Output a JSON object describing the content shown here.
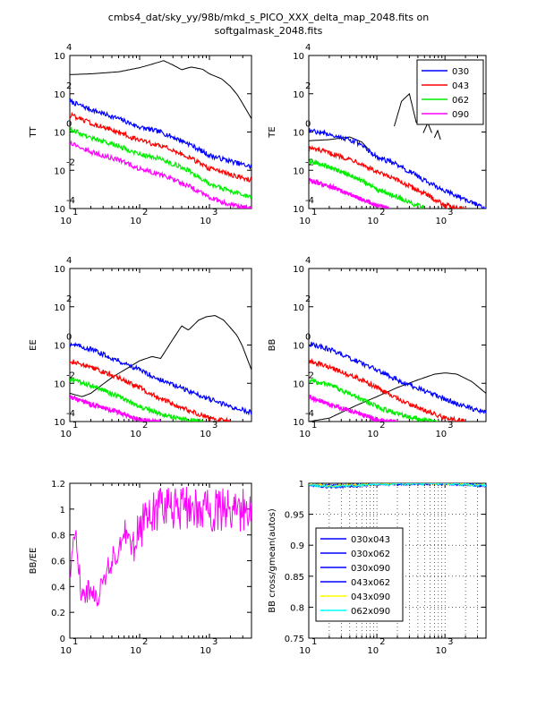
{
  "figure": {
    "title_line1": "cmbs4_dat/sky_yy/98b/mkd_s_PICO_XXX_delta_map_2048.fits on",
    "title_line2": "softgalmask_2048.fits"
  },
  "colors": {
    "030": "#0000ff",
    "043": "#ff0000",
    "062": "#00ee00",
    "090": "#ff00ff",
    "theory": "#000000",
    "043x090": "#ffff00",
    "062x090": "#00ffff"
  },
  "chart_data": [
    {
      "id": "tt",
      "type": "line",
      "ylabel": "TT",
      "xscale": "log",
      "yscale": "log",
      "xlim": [
        10,
        4000
      ],
      "ylim": [
        0.0001,
        10000
      ],
      "xticks": [
        {
          "base": "10",
          "exp": "1",
          "value": 10
        },
        {
          "base": "10",
          "exp": "2",
          "value": 100
        },
        {
          "base": "10",
          "exp": "3",
          "value": 1000
        }
      ],
      "yticks": [
        {
          "base": "10",
          "exp": "-4",
          "value": 0.0001
        },
        {
          "base": "10",
          "exp": "-2",
          "value": 0.01
        },
        {
          "base": "10",
          "exp": "0",
          "value": 1
        },
        {
          "base": "10",
          "exp": "2",
          "value": 100
        },
        {
          "base": "10",
          "exp": "4",
          "value": 10000
        }
      ],
      "theory": {
        "x": [
          10,
          20,
          50,
          100,
          150,
          200,
          220,
          300,
          400,
          550,
          800,
          1000,
          1500,
          2000,
          2500,
          3000,
          4000
        ],
        "y": [
          1000,
          1100,
          1400,
          2300,
          3500,
          4800,
          5400,
          3200,
          1800,
          2500,
          1900,
          1100,
          600,
          240,
          90,
          30,
          5
        ]
      },
      "series": [
        {
          "name": "030",
          "x": [
            10,
            20,
            50,
            100,
            200,
            500,
            1000,
            2000,
            4000
          ],
          "y": [
            40,
            15,
            5,
            1.8,
            1.0,
            0.25,
            0.06,
            0.03,
            0.015
          ]
        },
        {
          "name": "043",
          "x": [
            10,
            20,
            50,
            100,
            200,
            500,
            1000,
            2000,
            4000
          ],
          "y": [
            8,
            3,
            1.0,
            0.35,
            0.2,
            0.05,
            0.012,
            0.006,
            0.003
          ]
        },
        {
          "name": "062",
          "x": [
            10,
            20,
            50,
            100,
            200,
            500,
            1000,
            2000,
            4000
          ],
          "y": [
            1.5,
            0.5,
            0.18,
            0.07,
            0.04,
            0.01,
            0.002,
            0.0008,
            0.0004
          ]
        },
        {
          "name": "090",
          "x": [
            10,
            20,
            50,
            100,
            200,
            500,
            1000,
            2000,
            4000
          ],
          "y": [
            0.3,
            0.09,
            0.035,
            0.012,
            0.006,
            0.0015,
            0.0004,
            0.00015,
            0.0001
          ]
        }
      ]
    },
    {
      "id": "te",
      "type": "line",
      "ylabel": "TE",
      "xscale": "log",
      "yscale": "log",
      "xlim": [
        10,
        4000
      ],
      "ylim": [
        0.0001,
        10000
      ],
      "xticks": [
        {
          "base": "10",
          "exp": "1",
          "value": 10
        },
        {
          "base": "10",
          "exp": "2",
          "value": 100
        },
        {
          "base": "10",
          "exp": "3",
          "value": 1000
        }
      ],
      "yticks": [
        {
          "base": "10",
          "exp": "-4",
          "value": 0.0001
        },
        {
          "base": "10",
          "exp": "-2",
          "value": 0.01
        },
        {
          "base": "10",
          "exp": "0",
          "value": 1
        },
        {
          "base": "10",
          "exp": "2",
          "value": 100
        },
        {
          "base": "10",
          "exp": "4",
          "value": 10000
        }
      ],
      "legend": {
        "location": "top-right",
        "entries": [
          "030",
          "043",
          "062",
          "090"
        ]
      },
      "theory_segments": [
        {
          "x": [
            10,
            20,
            40,
            60,
            80
          ],
          "y": [
            0.35,
            0.4,
            0.55,
            0.3,
            0.1
          ]
        },
        {
          "x": [
            180,
            230,
            300,
            380
          ],
          "y": [
            2,
            40,
            100,
            3
          ]
        },
        {
          "x": [
            480,
            560,
            640
          ],
          "y": [
            0.9,
            3,
            0.9
          ]
        },
        {
          "x": [
            700,
            780,
            860
          ],
          "y": [
            0.5,
            1.2,
            0.4
          ]
        }
      ],
      "series": [
        {
          "name": "030",
          "x": [
            10,
            20,
            50,
            100,
            200,
            500,
            1000,
            2000,
            4000
          ],
          "y": [
            1.2,
            0.8,
            0.3,
            0.05,
            0.02,
            0.003,
            0.0008,
            0.0003,
            0.0001
          ]
        },
        {
          "name": "043",
          "x": [
            10,
            20,
            50,
            100,
            200,
            500,
            1000,
            2000
          ],
          "y": [
            0.15,
            0.08,
            0.03,
            0.008,
            0.003,
            0.0006,
            0.00015,
            0.0001
          ]
        },
        {
          "name": "062",
          "x": [
            10,
            20,
            50,
            100,
            200,
            500
          ],
          "y": [
            0.03,
            0.015,
            0.004,
            0.001,
            0.0004,
            0.0001
          ]
        },
        {
          "name": "090",
          "x": [
            10,
            20,
            50,
            100,
            150
          ],
          "y": [
            0.003,
            0.0015,
            0.0004,
            0.00015,
            0.0001
          ]
        }
      ]
    },
    {
      "id": "ee",
      "type": "line",
      "ylabel": "EE",
      "xscale": "log",
      "yscale": "log",
      "xlim": [
        10,
        4000
      ],
      "ylim": [
        0.0001,
        10000
      ],
      "xticks": [
        {
          "base": "10",
          "exp": "1",
          "value": 10
        },
        {
          "base": "10",
          "exp": "2",
          "value": 100
        },
        {
          "base": "10",
          "exp": "3",
          "value": 1000
        }
      ],
      "yticks": [
        {
          "base": "10",
          "exp": "-4",
          "value": 0.0001
        },
        {
          "base": "10",
          "exp": "-2",
          "value": 0.01
        },
        {
          "base": "10",
          "exp": "0",
          "value": 1
        },
        {
          "base": "10",
          "exp": "2",
          "value": 100
        },
        {
          "base": "10",
          "exp": "4",
          "value": 10000
        }
      ],
      "theory": {
        "x": [
          10,
          15,
          20,
          40,
          100,
          150,
          200,
          300,
          400,
          500,
          700,
          900,
          1200,
          1600,
          2000,
          2500,
          3000,
          4000
        ],
        "y": [
          0.003,
          0.002,
          0.003,
          0.02,
          0.15,
          0.25,
          0.2,
          2,
          10,
          6,
          20,
          30,
          35,
          20,
          8,
          3,
          0.8,
          0.05
        ]
      },
      "series": [
        {
          "name": "030",
          "x": [
            10,
            20,
            50,
            100,
            200,
            500,
            1000,
            2000,
            4000
          ],
          "y": [
            1.2,
            0.6,
            0.15,
            0.05,
            0.015,
            0.004,
            0.0015,
            0.0006,
            0.0003
          ]
        },
        {
          "name": "043",
          "x": [
            10,
            20,
            50,
            100,
            200,
            500,
            1000,
            2000
          ],
          "y": [
            0.15,
            0.07,
            0.02,
            0.006,
            0.0015,
            0.0004,
            0.00015,
            0.0001
          ]
        },
        {
          "name": "062",
          "x": [
            10,
            20,
            50,
            100,
            200,
            500,
            800
          ],
          "y": [
            0.015,
            0.008,
            0.002,
            0.0006,
            0.00025,
            0.00012,
            0.0001
          ]
        },
        {
          "name": "090",
          "x": [
            10,
            20,
            50,
            100,
            200
          ],
          "y": [
            0.002,
            0.0008,
            0.0003,
            0.00012,
            0.0001
          ]
        }
      ]
    },
    {
      "id": "bb",
      "type": "line",
      "ylabel": "BB",
      "xscale": "log",
      "yscale": "log",
      "xlim": [
        10,
        4000
      ],
      "ylim": [
        0.0001,
        10000
      ],
      "xticks": [
        {
          "base": "10",
          "exp": "1",
          "value": 10
        },
        {
          "base": "10",
          "exp": "2",
          "value": 100
        },
        {
          "base": "10",
          "exp": "3",
          "value": 1000
        }
      ],
      "yticks": [
        {
          "base": "10",
          "exp": "-4",
          "value": 0.0001
        },
        {
          "base": "10",
          "exp": "-2",
          "value": 0.01
        },
        {
          "base": "10",
          "exp": "0",
          "value": 1
        },
        {
          "base": "10",
          "exp": "2",
          "value": 100
        },
        {
          "base": "10",
          "exp": "4",
          "value": 10000
        }
      ],
      "theory": {
        "x": [
          10,
          20,
          50,
          100,
          200,
          400,
          700,
          1000,
          1500,
          2500,
          4000
        ],
        "y": [
          0.0001,
          0.00015,
          0.0007,
          0.002,
          0.006,
          0.015,
          0.03,
          0.035,
          0.03,
          0.012,
          0.003
        ]
      },
      "series": [
        {
          "name": "030",
          "x": [
            10,
            20,
            50,
            100,
            200,
            500,
            1000,
            2000,
            4000
          ],
          "y": [
            1.2,
            0.6,
            0.15,
            0.05,
            0.015,
            0.004,
            0.0015,
            0.0006,
            0.0003
          ]
        },
        {
          "name": "043",
          "x": [
            10,
            20,
            50,
            100,
            200,
            500,
            1000,
            2000
          ],
          "y": [
            0.15,
            0.07,
            0.02,
            0.006,
            0.0015,
            0.0004,
            0.00015,
            0.0001
          ]
        },
        {
          "name": "062",
          "x": [
            10,
            20,
            50,
            100,
            200,
            500,
            800
          ],
          "y": [
            0.015,
            0.008,
            0.002,
            0.0006,
            0.00025,
            0.00012,
            0.0001
          ]
        },
        {
          "name": "090",
          "x": [
            10,
            20,
            50,
            100,
            200
          ],
          "y": [
            0.002,
            0.0008,
            0.0003,
            0.00012,
            0.0001
          ]
        }
      ]
    },
    {
      "id": "bbee",
      "type": "line",
      "ylabel": "BB/EE",
      "xscale": "log",
      "yscale": "linear",
      "xlim": [
        10,
        4000
      ],
      "ylim": [
        0,
        1.2
      ],
      "xticks": [
        {
          "base": "10",
          "exp": "1",
          "value": 10
        },
        {
          "base": "10",
          "exp": "2",
          "value": 100
        },
        {
          "base": "10",
          "exp": "3",
          "value": 1000
        }
      ],
      "yticks": [
        {
          "label": "0",
          "value": 0
        },
        {
          "label": "0.2",
          "value": 0.2
        },
        {
          "label": "0.4",
          "value": 0.4
        },
        {
          "label": "0.6",
          "value": 0.6
        },
        {
          "label": "0.8",
          "value": 0.8
        },
        {
          "label": "1",
          "value": 1
        },
        {
          "label": "1.2",
          "value": 1.2
        }
      ],
      "series": [
        {
          "name": "090",
          "x": [
            10,
            12,
            15,
            20,
            25,
            30,
            40,
            50,
            60,
            80,
            100,
            150,
            200,
            300,
            500,
            1000,
            2000,
            4000
          ],
          "y": [
            0.5,
            0.8,
            0.3,
            0.4,
            0.3,
            0.45,
            0.6,
            0.7,
            0.85,
            0.7,
            0.85,
            0.95,
            1.0,
            1.02,
            1.0,
            1.0,
            1.0,
            1.0
          ]
        }
      ]
    },
    {
      "id": "bbcross",
      "type": "line",
      "ylabel": "BB cross/gmean(autos)",
      "xscale": "log",
      "yscale": "linear",
      "xlim": [
        10,
        4000
      ],
      "ylim": [
        0.75,
        1.0
      ],
      "grid": true,
      "xticks": [
        {
          "base": "10",
          "exp": "1",
          "value": 10
        },
        {
          "base": "10",
          "exp": "2",
          "value": 100
        },
        {
          "base": "10",
          "exp": "3",
          "value": 1000
        }
      ],
      "yticks": [
        {
          "label": "0.75",
          "value": 0.75
        },
        {
          "label": "0.8",
          "value": 0.8
        },
        {
          "label": "0.85",
          "value": 0.85
        },
        {
          "label": "0.9",
          "value": 0.9
        },
        {
          "label": "0.95",
          "value": 0.95
        },
        {
          "label": "1",
          "value": 1.0
        }
      ],
      "legend": {
        "location": "bottom-left",
        "entries": [
          "030x043",
          "030x062",
          "030x090",
          "043x062",
          "043x090",
          "062x090"
        ]
      },
      "series": [
        {
          "name": "030x043",
          "x": [
            10,
            20,
            50,
            100,
            300,
            1000,
            4000
          ],
          "y": [
            0.998,
            0.996,
            0.997,
            0.999,
            1.0,
            1.0,
            0.997
          ]
        },
        {
          "name": "030x062",
          "x": [
            10,
            20,
            50,
            100,
            300,
            1000,
            4000
          ],
          "y": [
            0.997,
            0.995,
            0.996,
            0.999,
            0.999,
            1.0,
            0.996
          ]
        },
        {
          "name": "030x090",
          "x": [
            10,
            20,
            50,
            100,
            300,
            1000,
            4000
          ],
          "y": [
            0.997,
            0.994,
            0.995,
            0.998,
            0.999,
            1.0,
            0.995
          ]
        },
        {
          "name": "043x062",
          "x": [
            10,
            20,
            50,
            100,
            300,
            1000,
            4000
          ],
          "y": [
            0.998,
            0.996,
            0.997,
            0.999,
            1.0,
            1.0,
            0.997
          ]
        },
        {
          "name": "043x090",
          "x": [
            10,
            20,
            50,
            100,
            300,
            1000,
            4000
          ],
          "y": [
            0.998,
            0.996,
            0.997,
            0.999,
            1.0,
            1.0,
            0.997
          ]
        },
        {
          "name": "062x090",
          "x": [
            10,
            20,
            50,
            100,
            300,
            1000,
            4000
          ],
          "y": [
            0.997,
            0.995,
            0.996,
            0.998,
            0.999,
            1.0,
            0.996
          ]
        }
      ]
    }
  ]
}
